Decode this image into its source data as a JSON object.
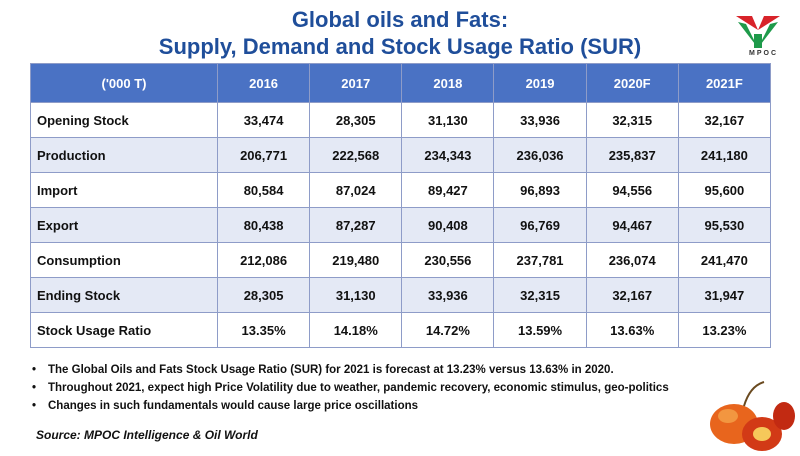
{
  "title": {
    "line1": "Global oils and Fats:",
    "line2": "Supply, Demand and Stock Usage Ratio (SUR)"
  },
  "logo": {
    "text": "MPOC",
    "colors": {
      "red": "#d8232a",
      "green": "#1e9a4a"
    }
  },
  "table": {
    "headers": [
      "('000 T)",
      "2016",
      "2017",
      "2018",
      "2019",
      "2020F",
      "2021F"
    ],
    "rows": [
      {
        "label": "Opening Stock",
        "values": [
          "33,474",
          "28,305",
          "31,130",
          "33,936",
          "32,315",
          "32,167"
        ]
      },
      {
        "label": "Production",
        "values": [
          "206,771",
          "222,568",
          "234,343",
          "236,036",
          "235,837",
          "241,180"
        ]
      },
      {
        "label": "Import",
        "values": [
          "80,584",
          "87,024",
          "89,427",
          "96,893",
          "94,556",
          "95,600"
        ]
      },
      {
        "label": "Export",
        "values": [
          "80,438",
          "87,287",
          "90,408",
          "96,769",
          "94,467",
          "95,530"
        ]
      },
      {
        "label": "Consumption",
        "values": [
          "212,086",
          "219,480",
          "230,556",
          "237,781",
          "236,074",
          "241,470"
        ]
      },
      {
        "label": "Ending Stock",
        "values": [
          "28,305",
          "31,130",
          "33,936",
          "32,315",
          "32,167",
          "31,947"
        ]
      },
      {
        "label": "Stock Usage Ratio",
        "values": [
          "13.35%",
          "14.18%",
          "14.72%",
          "13.59%",
          "13.63%",
          "13.23%"
        ]
      }
    ]
  },
  "notes": [
    "The Global Oils and Fats Stock Usage Ratio (SUR) for 2021 is forecast at 13.23% versus 13.63% in 2020.",
    "Throughout 2021, expect high Price Volatility due to weather, pandemic recovery, economic stimulus, geo-politics",
    "Changes in such fundamentals would cause large price oscillations"
  ],
  "source": "Source: MPOC Intelligence & Oil World",
  "colors": {
    "title": "#1f4e9a",
    "header_bg": "#4a72c4",
    "row_alt": "#e4e9f5"
  }
}
